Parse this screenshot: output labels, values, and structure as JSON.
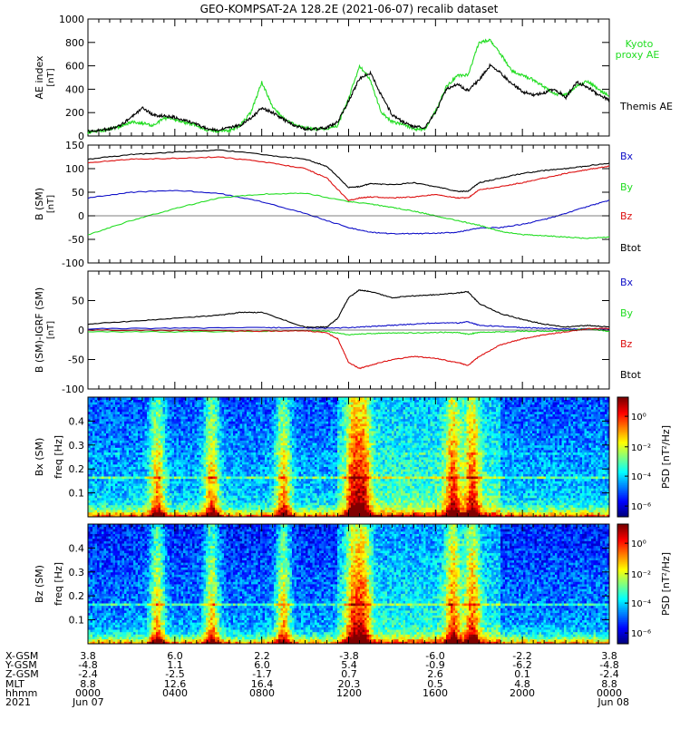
{
  "title": "GEO-KOMPSAT-2A 128.2E (2021-06-07) recalib dataset",
  "colors": {
    "kyoto": "#22dd22",
    "themis": "#000000",
    "bx": "#1010c8",
    "by": "#22dd22",
    "bz": "#dd1010",
    "btot": "#000000"
  },
  "colorbar": {
    "label": "PSD [nT²/Hz]",
    "ticks": [
      "10⁰",
      "10⁻²",
      "10⁻⁴",
      "10⁻⁶"
    ]
  },
  "ephemeris": {
    "row_labels": [
      "X-GSM",
      "Y-GSM",
      "Z-GSM",
      "MLT",
      "hhmm",
      "2021"
    ],
    "columns": [
      [
        "3.8",
        "-4.8",
        "-2.4",
        "8.8",
        "0000",
        "Jun 07"
      ],
      [
        "6.0",
        "1.1",
        "-2.5",
        "12.6",
        "0400",
        ""
      ],
      [
        "2.2",
        "6.0",
        "-1.7",
        "16.4",
        "0800",
        ""
      ],
      [
        "-3.8",
        "5.4",
        "0.7",
        "20.3",
        "1200",
        ""
      ],
      [
        "-6.0",
        "-0.9",
        "2.6",
        "0.5",
        "1600",
        ""
      ],
      [
        "-2.2",
        "-6.2",
        "0.1",
        "4.8",
        "2000",
        ""
      ],
      [
        "3.8",
        "-4.8",
        "-2.4",
        "8.8",
        "0000",
        "Jun 08"
      ]
    ]
  },
  "chart_data": [
    {
      "type": "line",
      "ylabel": "AE index [nT]",
      "ylim": [
        0,
        1000
      ],
      "ytick_labels": [
        "0",
        "200",
        "400",
        "600",
        "800",
        "1000"
      ],
      "xlim_hours": [
        0,
        24
      ],
      "legend_placement": "right",
      "series": [
        {
          "name": "Kyoto proxy AE",
          "x": [
            0,
            0.5,
            1,
            1.5,
            2,
            2.5,
            3,
            3.5,
            4,
            4.5,
            5,
            5.5,
            6,
            6.5,
            7,
            7.5,
            8,
            8.5,
            9,
            9.5,
            10,
            10.5,
            11,
            11.5,
            12,
            12.5,
            13,
            13.5,
            14,
            14.5,
            15,
            15.5,
            16,
            16.5,
            17,
            17.5,
            18,
            18.5,
            19,
            19.5,
            20,
            20.5,
            21,
            21.5,
            22,
            22.5,
            23,
            23.5,
            24
          ],
          "y": [
            30,
            40,
            60,
            80,
            120,
            110,
            90,
            150,
            140,
            110,
            90,
            50,
            40,
            45,
            90,
            200,
            460,
            250,
            150,
            100,
            70,
            60,
            60,
            90,
            320,
            600,
            480,
            200,
            120,
            100,
            60,
            55,
            210,
            420,
            520,
            520,
            800,
            820,
            700,
            560,
            520,
            480,
            420,
            360,
            350,
            430,
            470,
            400,
            340
          ]
        },
        {
          "name": "Themis AE",
          "x": [
            0,
            0.5,
            1,
            1.5,
            2,
            2.5,
            3,
            3.5,
            4,
            4.5,
            5,
            5.5,
            6,
            6.5,
            7,
            7.5,
            8,
            8.5,
            9,
            9.5,
            10,
            10.5,
            11,
            11.5,
            12,
            12.5,
            13,
            13.5,
            14,
            14.5,
            15,
            15.5,
            16,
            16.5,
            17,
            17.5,
            18,
            18.5,
            19,
            19.5,
            20,
            20.5,
            21,
            21.5,
            22,
            22.5,
            23,
            23.5,
            24
          ],
          "y": [
            40,
            50,
            60,
            90,
            160,
            240,
            180,
            170,
            160,
            130,
            100,
            60,
            50,
            70,
            90,
            150,
            240,
            200,
            140,
            90,
            60,
            60,
            70,
            120,
            300,
            490,
            540,
            350,
            180,
            120,
            80,
            70,
            200,
            400,
            440,
            390,
            480,
            600,
            540,
            450,
            380,
            350,
            370,
            400,
            330,
            460,
            420,
            350,
            310
          ]
        }
      ]
    },
    {
      "type": "line",
      "ylabel": "B (SM) [nT]",
      "ylim": [
        -100,
        150
      ],
      "ytick_labels": [
        "-100",
        "-50",
        "0",
        "50",
        "100",
        "150"
      ],
      "xlim_hours": [
        0,
        24
      ],
      "legend_placement": "right",
      "series": [
        {
          "name": "Bx",
          "x": [
            0,
            2,
            4,
            6,
            8,
            10,
            12,
            13,
            14,
            15,
            16,
            17,
            18,
            19,
            20,
            21,
            22,
            23,
            24
          ],
          "y": [
            38,
            50,
            54,
            48,
            30,
            5,
            -25,
            -35,
            -38,
            -38,
            -37,
            -35,
            -26,
            -25,
            -18,
            -8,
            5,
            20,
            33
          ]
        },
        {
          "name": "By",
          "x": [
            0,
            2,
            4,
            6,
            8,
            10,
            12,
            13,
            14,
            15,
            16,
            17,
            18,
            19,
            20,
            21,
            22,
            23,
            24
          ],
          "y": [
            -40,
            -10,
            15,
            38,
            46,
            48,
            30,
            25,
            18,
            10,
            0,
            -10,
            -20,
            -33,
            -40,
            -42,
            -45,
            -48,
            -45
          ]
        },
        {
          "name": "Bz",
          "x": [
            0,
            2,
            4,
            6,
            8,
            10,
            11,
            12,
            12.5,
            13,
            14,
            15,
            16,
            17,
            17.5,
            18,
            19,
            20,
            21,
            22,
            23,
            24
          ],
          "y": [
            113,
            120,
            122,
            125,
            115,
            100,
            80,
            32,
            38,
            40,
            38,
            40,
            45,
            38,
            38,
            55,
            62,
            70,
            80,
            90,
            98,
            105
          ]
        },
        {
          "name": "Btot",
          "x": [
            0,
            2,
            4,
            6,
            8,
            10,
            11,
            12,
            12.5,
            13,
            14,
            15,
            16,
            17,
            17.5,
            18,
            19,
            20,
            21,
            22,
            23,
            24
          ],
          "y": [
            120,
            130,
            135,
            140,
            130,
            120,
            105,
            60,
            62,
            68,
            66,
            70,
            62,
            52,
            52,
            70,
            80,
            90,
            96,
            100,
            106,
            112
          ]
        }
      ]
    },
    {
      "type": "line",
      "ylabel": "B (SM)-IGRF (SM) [nT]",
      "ylim": [
        -100,
        100
      ],
      "ytick_labels": [
        "-100",
        "-50",
        "0",
        "50"
      ],
      "xlim_hours": [
        0,
        24
      ],
      "legend_placement": "right",
      "series": [
        {
          "name": "Bx",
          "x": [
            0,
            4,
            8,
            10,
            11,
            12,
            13,
            14,
            15,
            16,
            17,
            17.5,
            18,
            19,
            20,
            21,
            22,
            23,
            24
          ],
          "y": [
            2,
            3,
            4,
            4,
            3,
            4,
            6,
            8,
            10,
            12,
            12,
            14,
            8,
            6,
            4,
            3,
            2,
            2,
            2
          ]
        },
        {
          "name": "By",
          "x": [
            0,
            4,
            8,
            10,
            11,
            12,
            13,
            14,
            15,
            16,
            17,
            17.5,
            18,
            19,
            20,
            21,
            22,
            23,
            24
          ],
          "y": [
            -3,
            -3,
            -2,
            -1,
            -2,
            -8,
            -6,
            -5,
            -5,
            -4,
            -4,
            -7,
            -4,
            -3,
            -2,
            -2,
            -1,
            2,
            -2
          ]
        },
        {
          "name": "Bz",
          "x": [
            0,
            4,
            6,
            8,
            10,
            11,
            11.5,
            12,
            12.5,
            13,
            14,
            15,
            16,
            17,
            17.5,
            18,
            19,
            20,
            21,
            22,
            23,
            24
          ],
          "y": [
            0,
            -1,
            -1,
            -2,
            -1,
            -5,
            -15,
            -55,
            -65,
            -60,
            -50,
            -45,
            -48,
            -55,
            -60,
            -45,
            -25,
            -15,
            -8,
            -3,
            2,
            3
          ]
        },
        {
          "name": "Btot",
          "x": [
            0,
            2,
            4,
            6,
            7,
            8,
            10,
            11,
            11.5,
            12,
            12.5,
            13,
            14,
            15,
            16,
            17,
            17.5,
            18,
            19,
            20,
            21,
            22,
            23,
            24
          ],
          "y": [
            10,
            15,
            20,
            25,
            30,
            30,
            5,
            5,
            20,
            55,
            68,
            65,
            55,
            58,
            60,
            63,
            65,
            45,
            28,
            18,
            10,
            5,
            8,
            5
          ]
        }
      ]
    },
    {
      "type": "heatmap",
      "ylabel": "Bx (SM) freq [Hz]",
      "ylim": [
        0,
        0.5
      ],
      "ytick_labels": [
        "0.1",
        "0.2",
        "0.3",
        "0.4"
      ],
      "xlim_hours": [
        0,
        24
      ]
    },
    {
      "type": "heatmap",
      "ylabel": "Bz (SM) freq [Hz]",
      "ylim": [
        0,
        0.5
      ],
      "ytick_labels": [
        "0.1",
        "0.2",
        "0.3",
        "0.4"
      ],
      "xlim_hours": [
        0,
        24
      ]
    }
  ]
}
